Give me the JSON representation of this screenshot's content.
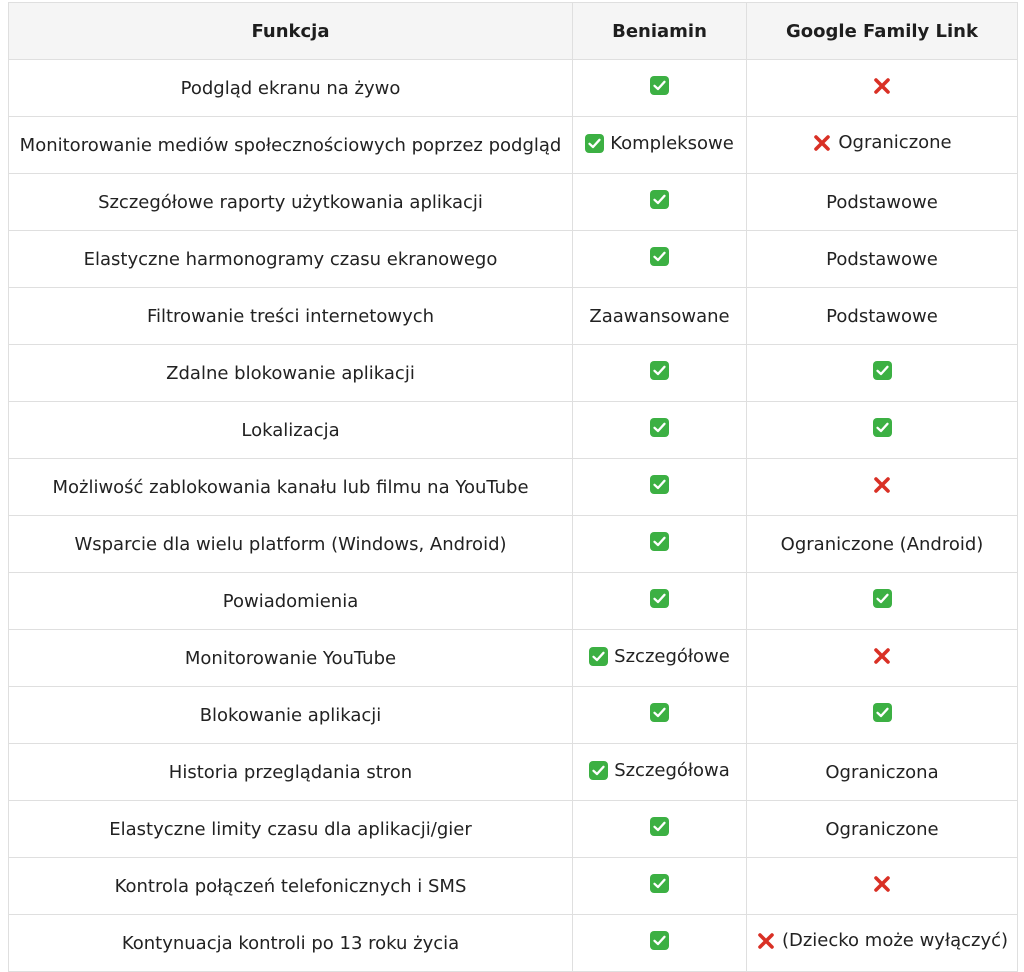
{
  "table": {
    "headers": [
      "Funkcja",
      "Beniamin",
      "Google Family Link"
    ],
    "rows": [
      {
        "feature": "Podgląd ekranu na żywo",
        "beniamin": {
          "icon": "check-icon",
          "text": ""
        },
        "google": {
          "icon": "cross-icon",
          "text": ""
        }
      },
      {
        "feature": "Monitorowanie mediów społecznościowych poprzez podgląd",
        "beniamin": {
          "icon": "check-icon",
          "text": "Kompleksowe"
        },
        "google": {
          "icon": "cross-icon",
          "text": "Ograniczone"
        }
      },
      {
        "feature": "Szczegółowe raporty użytkowania aplikacji",
        "beniamin": {
          "icon": "check-icon",
          "text": ""
        },
        "google": {
          "icon": "",
          "text": "Podstawowe"
        }
      },
      {
        "feature": "Elastyczne harmonogramy czasu ekranowego",
        "beniamin": {
          "icon": "check-icon",
          "text": ""
        },
        "google": {
          "icon": "",
          "text": "Podstawowe"
        }
      },
      {
        "feature": "Filtrowanie treści internetowych",
        "beniamin": {
          "icon": "",
          "text": "Zaawansowane"
        },
        "google": {
          "icon": "",
          "text": "Podstawowe"
        }
      },
      {
        "feature": "Zdalne blokowanie aplikacji",
        "beniamin": {
          "icon": "check-icon",
          "text": ""
        },
        "google": {
          "icon": "check-icon",
          "text": ""
        }
      },
      {
        "feature": "Lokalizacja",
        "beniamin": {
          "icon": "check-icon",
          "text": ""
        },
        "google": {
          "icon": "check-icon",
          "text": ""
        }
      },
      {
        "feature": "Możliwość zablokowania kanału lub filmu na YouTube",
        "beniamin": {
          "icon": "check-icon",
          "text": ""
        },
        "google": {
          "icon": "cross-icon",
          "text": ""
        }
      },
      {
        "feature": "Wsparcie dla wielu platform (Windows, Android)",
        "beniamin": {
          "icon": "check-icon",
          "text": ""
        },
        "google": {
          "icon": "",
          "text": "Ograniczone (Android)"
        }
      },
      {
        "feature": "Powiadomienia",
        "beniamin": {
          "icon": "check-icon",
          "text": ""
        },
        "google": {
          "icon": "check-icon",
          "text": ""
        }
      },
      {
        "feature": "Monitorowanie YouTube",
        "beniamin": {
          "icon": "check-icon",
          "text": "Szczegółowe"
        },
        "google": {
          "icon": "cross-icon",
          "text": ""
        }
      },
      {
        "feature": "Blokowanie aplikacji",
        "beniamin": {
          "icon": "check-icon",
          "text": ""
        },
        "google": {
          "icon": "check-icon",
          "text": ""
        }
      },
      {
        "feature": "Historia przeglądania stron",
        "beniamin": {
          "icon": "check-icon",
          "text": "Szczegółowa"
        },
        "google": {
          "icon": "",
          "text": "Ograniczona"
        }
      },
      {
        "feature": "Elastyczne limity czasu dla aplikacji/gier",
        "beniamin": {
          "icon": "check-icon",
          "text": ""
        },
        "google": {
          "icon": "",
          "text": "Ograniczone"
        }
      },
      {
        "feature": "Kontrola połączeń telefonicznych i SMS",
        "beniamin": {
          "icon": "check-icon",
          "text": ""
        },
        "google": {
          "icon": "cross-icon",
          "text": ""
        }
      },
      {
        "feature": "Kontynuacja kontroli po 13 roku życia",
        "beniamin": {
          "icon": "check-icon",
          "text": ""
        },
        "google": {
          "icon": "cross-icon",
          "text": "(Dziecko może wyłączyć)"
        }
      }
    ]
  },
  "colors": {
    "check": "#3cb043",
    "cross": "#d93025",
    "header_bg": "#f5f5f5",
    "border": "#dfdfdf"
  }
}
